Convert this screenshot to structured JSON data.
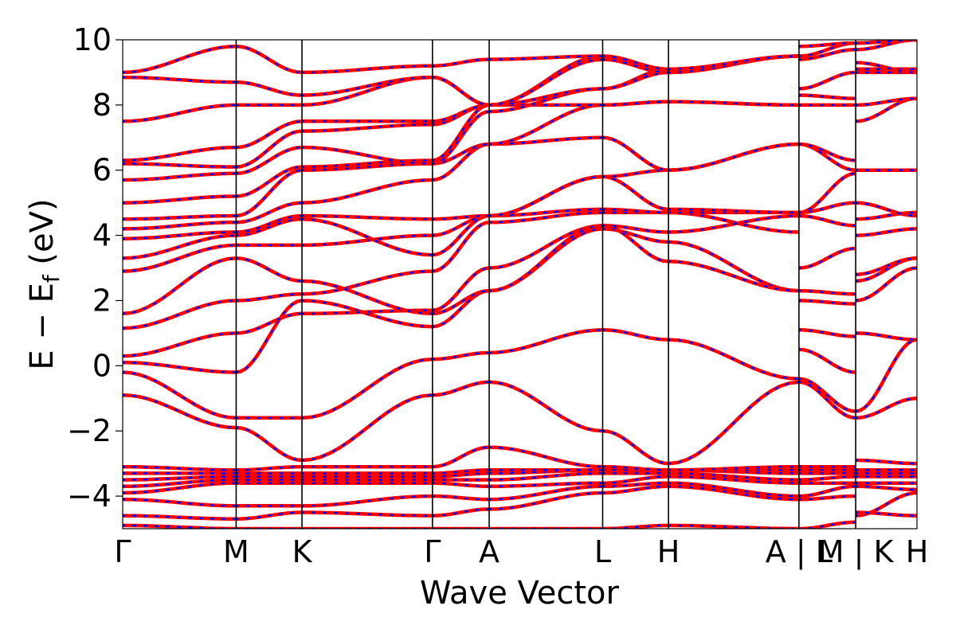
{
  "chart_data": {
    "type": "line",
    "title": "",
    "xlabel": "Wave Vector",
    "ylabel": "E − E_f (eV)",
    "ylabel_parts": {
      "main": "E − E",
      "sub": "f",
      "unit": " (eV)"
    },
    "ylim": [
      -5,
      10
    ],
    "yticks": [
      -4,
      -2,
      0,
      2,
      4,
      6,
      8,
      10
    ],
    "ytick_labels": [
      "−4",
      "−2",
      "0",
      "2",
      "4",
      "6",
      "8",
      "10"
    ],
    "xlim": [
      0,
      7.0
    ],
    "high_symmetry_points": [
      {
        "label": "Γ",
        "x": 0.0
      },
      {
        "label": "M",
        "x": 1.0
      },
      {
        "label": "K",
        "x": 1.58
      },
      {
        "label": "Γ",
        "x": 2.73
      },
      {
        "label": "A",
        "x": 3.23
      },
      {
        "label": "L",
        "x": 4.23
      },
      {
        "label": "H",
        "x": 4.81
      },
      {
        "label": "A | L",
        "x": 5.96
      },
      {
        "label": "M | K",
        "x": 6.46
      },
      {
        "label": "H",
        "x": 7.0
      }
    ],
    "series_styles": [
      {
        "role": "overlay-dashed",
        "color": "#0000ff"
      },
      {
        "role": "solid",
        "color": "#ff0000"
      }
    ],
    "segments": [
      {
        "x_start": 0.0,
        "x_end": 1.0,
        "bands": [
          [
            -4.9,
            -5.0
          ],
          [
            -4.6,
            -4.7
          ],
          [
            -4.1,
            -4.3
          ],
          [
            -3.9,
            -3.6
          ],
          [
            -3.7,
            -3.5
          ],
          [
            -3.5,
            -3.4
          ],
          [
            -3.3,
            -3.3
          ],
          [
            -3.1,
            -3.2
          ],
          [
            -0.9,
            -1.9
          ],
          [
            -0.2,
            -1.6
          ],
          [
            0.1,
            -0.2
          ],
          [
            0.3,
            1.0
          ],
          [
            1.15,
            2.0
          ],
          [
            1.6,
            3.3
          ],
          [
            2.9,
            3.7
          ],
          [
            3.3,
            4.0
          ],
          [
            3.9,
            4.1
          ],
          [
            4.2,
            4.4
          ],
          [
            4.5,
            4.6
          ],
          [
            5.0,
            5.2
          ],
          [
            5.7,
            5.9
          ],
          [
            6.2,
            6.1
          ],
          [
            6.3,
            6.7
          ],
          [
            7.5,
            8.0
          ],
          [
            8.85,
            8.7
          ],
          [
            9.0,
            9.8
          ]
        ]
      },
      {
        "x_start": 1.0,
        "x_end": 1.58,
        "bands": [
          [
            -5.0,
            -5.0
          ],
          [
            -4.7,
            -4.5
          ],
          [
            -4.3,
            -4.3
          ],
          [
            -3.6,
            -3.6
          ],
          [
            -3.5,
            -3.5
          ],
          [
            -3.4,
            -3.4
          ],
          [
            -3.3,
            -3.3
          ],
          [
            -3.2,
            -3.1
          ],
          [
            -1.9,
            -2.9
          ],
          [
            -1.6,
            -1.6
          ],
          [
            -0.2,
            2.0
          ],
          [
            1.0,
            1.6
          ],
          [
            2.0,
            2.2
          ],
          [
            3.3,
            2.6
          ],
          [
            3.7,
            3.7
          ],
          [
            4.0,
            4.5
          ],
          [
            4.1,
            4.6
          ],
          [
            4.4,
            5.0
          ],
          [
            4.6,
            6.0
          ],
          [
            5.2,
            6.1
          ],
          [
            5.9,
            6.7
          ],
          [
            6.1,
            7.2
          ],
          [
            6.7,
            7.5
          ],
          [
            8.0,
            8.0
          ],
          [
            8.7,
            8.3
          ],
          [
            9.8,
            9.0
          ]
        ]
      },
      {
        "x_start": 1.58,
        "x_end": 2.73,
        "bands": [
          [
            -5.0,
            -5.0
          ],
          [
            -4.5,
            -4.6
          ],
          [
            -4.3,
            -4.0
          ],
          [
            -3.6,
            -3.6
          ],
          [
            -3.5,
            -3.5
          ],
          [
            -3.4,
            -3.4
          ],
          [
            -3.3,
            -3.3
          ],
          [
            -3.1,
            -3.1
          ],
          [
            -2.9,
            -0.9
          ],
          [
            -1.6,
            0.2
          ],
          [
            2.0,
            1.2
          ],
          [
            1.6,
            1.7
          ],
          [
            2.2,
            2.9
          ],
          [
            2.6,
            1.6
          ],
          [
            3.7,
            4.0
          ],
          [
            4.5,
            3.4
          ],
          [
            4.6,
            4.5
          ],
          [
            5.0,
            5.7
          ],
          [
            6.0,
            6.2
          ],
          [
            6.1,
            6.3
          ],
          [
            6.7,
            6.2
          ],
          [
            7.2,
            7.4
          ],
          [
            7.5,
            7.5
          ],
          [
            8.0,
            8.85
          ],
          [
            8.3,
            8.85
          ],
          [
            9.0,
            9.2
          ]
        ]
      },
      {
        "x_start": 2.73,
        "x_end": 3.23,
        "bands": [
          [
            -5.0,
            -5.0
          ],
          [
            -4.6,
            -4.4
          ],
          [
            -4.0,
            -4.1
          ],
          [
            -3.6,
            -3.7
          ],
          [
            -3.5,
            -3.5
          ],
          [
            -3.4,
            -3.3
          ],
          [
            -3.3,
            -3.2
          ],
          [
            -3.1,
            -2.5
          ],
          [
            -0.9,
            -0.5
          ],
          [
            0.2,
            0.4
          ],
          [
            1.2,
            2.3
          ],
          [
            1.7,
            3.0
          ],
          [
            2.9,
            4.4
          ],
          [
            1.6,
            2.3
          ],
          [
            4.0,
            4.6
          ],
          [
            3.4,
            4.6
          ],
          [
            4.5,
            4.6
          ],
          [
            5.7,
            6.8
          ],
          [
            6.2,
            6.8
          ],
          [
            6.3,
            8.0
          ],
          [
            6.2,
            7.8
          ],
          [
            7.4,
            8.0
          ],
          [
            7.5,
            8.0
          ],
          [
            8.85,
            8.0
          ],
          [
            8.85,
            8.0
          ],
          [
            9.2,
            9.4
          ]
        ]
      },
      {
        "x_start": 3.23,
        "x_end": 4.23,
        "bands": [
          [
            -5.0,
            -5.0
          ],
          [
            -4.4,
            -3.9
          ],
          [
            -4.1,
            -3.7
          ],
          [
            -3.7,
            -3.6
          ],
          [
            -3.5,
            -3.3
          ],
          [
            -3.3,
            -3.2
          ],
          [
            -3.2,
            -3.2
          ],
          [
            -2.5,
            -3.1
          ],
          [
            -0.5,
            -2.0
          ],
          [
            0.4,
            1.1
          ],
          [
            2.3,
            4.2
          ],
          [
            3.0,
            4.3
          ],
          [
            4.4,
            4.7
          ],
          [
            2.3,
            4.3
          ],
          [
            4.6,
            4.8
          ],
          [
            4.6,
            5.8
          ],
          [
            4.6,
            5.8
          ],
          [
            6.8,
            7.0
          ],
          [
            6.8,
            8.0
          ],
          [
            8.0,
            8.0
          ],
          [
            7.8,
            8.5
          ],
          [
            8.0,
            8.5
          ],
          [
            8.0,
            9.4
          ],
          [
            8.0,
            9.5
          ],
          [
            8.0,
            9.4
          ],
          [
            9.4,
            9.5
          ]
        ]
      },
      {
        "x_start": 4.23,
        "x_end": 4.81,
        "bands": [
          [
            -5.0,
            -4.9
          ],
          [
            -3.9,
            -3.7
          ],
          [
            -3.7,
            -3.6
          ],
          [
            -3.6,
            -3.4
          ],
          [
            -3.3,
            -3.3
          ],
          [
            -3.2,
            -3.2
          ],
          [
            -3.2,
            -3.2
          ],
          [
            -3.1,
            -3.2
          ],
          [
            -2.0,
            -3.0
          ],
          [
            1.1,
            0.8
          ],
          [
            4.2,
            3.8
          ],
          [
            4.3,
            3.2
          ],
          [
            4.7,
            4.7
          ],
          [
            4.3,
            4.1
          ],
          [
            4.8,
            4.7
          ],
          [
            5.8,
            4.8
          ],
          [
            5.8,
            6.0
          ],
          [
            7.0,
            6.0
          ],
          [
            8.0,
            8.1
          ],
          [
            8.0,
            8.1
          ],
          [
            8.5,
            9.1
          ],
          [
            8.5,
            9.0
          ],
          [
            9.4,
            9.0
          ],
          [
            9.5,
            9.1
          ],
          [
            9.4,
            9.0
          ],
          [
            9.5,
            9.1
          ]
        ]
      },
      {
        "x_start": 4.81,
        "x_end": 5.96,
        "bands": [
          [
            -4.9,
            -5.0
          ],
          [
            -3.7,
            -4.1
          ],
          [
            -3.6,
            -4.0
          ],
          [
            -3.4,
            -3.6
          ],
          [
            -3.3,
            -3.5
          ],
          [
            -3.2,
            -3.3
          ],
          [
            -3.2,
            -3.2
          ],
          [
            -3.2,
            -3.1
          ],
          [
            -3.0,
            -0.5
          ],
          [
            0.8,
            -0.4
          ],
          [
            3.8,
            2.3
          ],
          [
            3.2,
            2.3
          ],
          [
            4.7,
            4.1
          ],
          [
            4.1,
            4.6
          ],
          [
            4.7,
            4.7
          ],
          [
            4.8,
            4.7
          ],
          [
            6.0,
            6.8
          ],
          [
            6.0,
            6.8
          ],
          [
            8.1,
            8.0
          ],
          [
            8.1,
            8.0
          ],
          [
            9.1,
            9.5
          ],
          [
            9.0,
            9.5
          ],
          [
            9.0,
            9.5
          ],
          [
            9.1,
            9.5
          ],
          [
            9.0,
            9.5
          ],
          [
            9.1,
            9.5
          ]
        ]
      },
      {
        "x_start": 5.96,
        "x_end": 6.46,
        "bands": [
          [
            -5.0,
            -4.8
          ],
          [
            -4.1,
            -4.0
          ],
          [
            -4.0,
            -3.7
          ],
          [
            -3.6,
            -3.6
          ],
          [
            -3.5,
            -3.4
          ],
          [
            -3.3,
            -3.3
          ],
          [
            -3.2,
            -3.2
          ],
          [
            -3.1,
            -3.1
          ],
          [
            -0.5,
            -1.6
          ],
          [
            -0.4,
            -1.4
          ],
          [
            1.1,
            0.9
          ],
          [
            0.5,
            -0.2
          ],
          [
            2.0,
            1.9
          ],
          [
            2.3,
            2.2
          ],
          [
            3.0,
            3.6
          ],
          [
            4.6,
            4.3
          ],
          [
            4.7,
            5.0
          ],
          [
            4.7,
            5.9
          ],
          [
            6.8,
            6.0
          ],
          [
            6.8,
            6.3
          ],
          [
            8.0,
            8.0
          ],
          [
            8.3,
            8.2
          ],
          [
            8.5,
            9.0
          ],
          [
            9.4,
            9.7
          ],
          [
            9.5,
            9.9
          ],
          [
            9.8,
            9.9
          ]
        ]
      },
      {
        "x_start": 6.46,
        "x_end": 7.0,
        "bands": [
          [
            -4.6,
            -3.9
          ],
          [
            -4.5,
            -4.6
          ],
          [
            -3.7,
            -3.8
          ],
          [
            -3.6,
            -3.6
          ],
          [
            -3.4,
            -3.4
          ],
          [
            -3.3,
            -3.3
          ],
          [
            -3.2,
            -3.2
          ],
          [
            -2.9,
            -3.0
          ],
          [
            -1.6,
            -1.0
          ],
          [
            -1.4,
            0.8
          ],
          [
            1.0,
            0.8
          ],
          [
            2.0,
            3.0
          ],
          [
            2.6,
            3.3
          ],
          [
            2.8,
            3.3
          ],
          [
            4.0,
            4.2
          ],
          [
            4.5,
            4.7
          ],
          [
            5.0,
            4.6
          ],
          [
            6.0,
            6.0
          ],
          [
            7.5,
            8.2
          ],
          [
            8.0,
            8.2
          ],
          [
            9.0,
            9.0
          ],
          [
            9.1,
            9.1
          ],
          [
            9.3,
            9.0
          ],
          [
            9.7,
            10.0
          ],
          [
            9.9,
            10.0
          ],
          [
            9.9,
            10.0
          ]
        ]
      }
    ]
  }
}
